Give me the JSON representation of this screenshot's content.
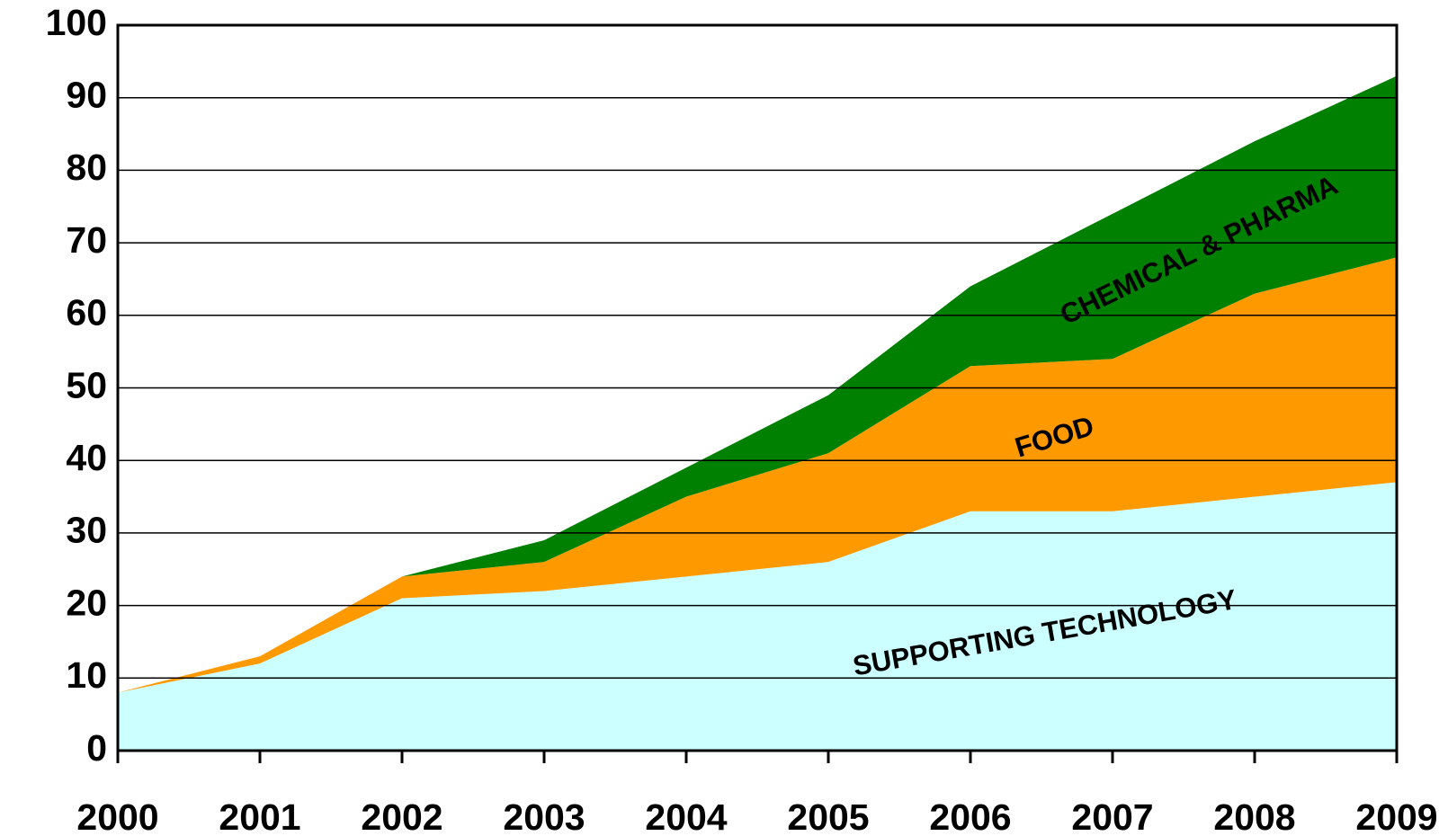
{
  "chart_data": {
    "type": "stacked_area",
    "x": [
      2000,
      2001,
      2002,
      2003,
      2004,
      2005,
      2006,
      2007,
      2008,
      2009
    ],
    "series": [
      {
        "name": "SUPPORTING TECHNOLOGY",
        "color": "#ccffff",
        "values": [
          8,
          12,
          21,
          22,
          24,
          26,
          33,
          33,
          35,
          37
        ]
      },
      {
        "name": "FOOD",
        "color": "#ff9900",
        "values": [
          0,
          1,
          3,
          4,
          11,
          15,
          20,
          21,
          28,
          31
        ]
      },
      {
        "name": "CHEMICAL & PHARMA",
        "color": "#008000",
        "values": [
          0,
          0,
          0,
          3,
          4,
          8,
          11,
          20,
          21,
          25
        ]
      }
    ],
    "xlim": [
      2000,
      2009
    ],
    "xticks": [
      2000,
      2001,
      2002,
      2003,
      2004,
      2005,
      2006,
      2007,
      2008,
      2009
    ],
    "ylim": [
      0,
      100
    ],
    "yticks": [
      0,
      10,
      20,
      30,
      40,
      50,
      60,
      70,
      80,
      90,
      100
    ],
    "grid": true
  }
}
